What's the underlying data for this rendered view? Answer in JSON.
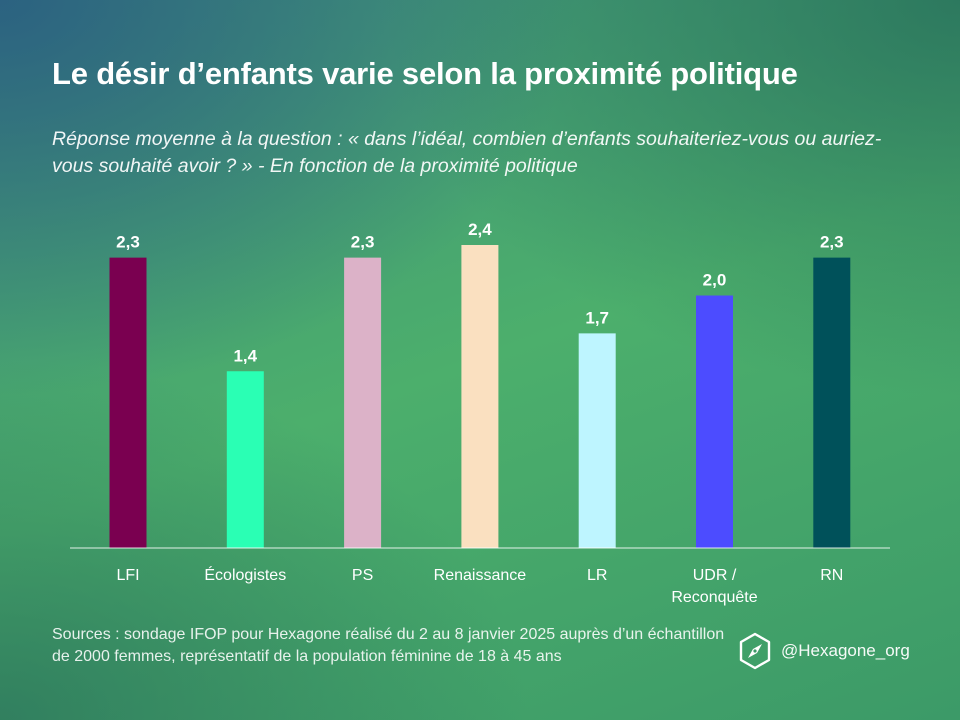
{
  "header": {
    "title": "Le désir d’enfants varie selon la proximité politique",
    "subtitle": "Réponse moyenne à la question : « dans l’idéal, combien d’enfants souhaiteriez-vous ou auriez-vous souhaité avoir ? » - En fonction de la proximité politique"
  },
  "chart_data": {
    "type": "bar",
    "categories": [
      "LFI",
      "Écologistes",
      "PS",
      "Renaissance",
      "LR",
      "UDR / Reconquête",
      "RN"
    ],
    "category_lines": [
      [
        "LFI"
      ],
      [
        "Écologistes"
      ],
      [
        "PS"
      ],
      [
        "Renaissance"
      ],
      [
        "LR"
      ],
      [
        "UDR /",
        "Reconquête"
      ],
      [
        "RN"
      ]
    ],
    "values": [
      2.3,
      1.4,
      2.3,
      2.4,
      1.7,
      2.0,
      2.3
    ],
    "value_labels": [
      "2,3",
      "1,4",
      "2,3",
      "2,4",
      "1,7",
      "2,0",
      "2,3"
    ],
    "colors": [
      "#7a0050",
      "#2affb4",
      "#dcb2c8",
      "#fae0c0",
      "#bef5ff",
      "#4c4cff",
      "#00515a"
    ],
    "ylim": [
      0,
      2.4
    ],
    "grid": false,
    "legend": "none"
  },
  "footer": {
    "sources": "Sources : sondage IFOP pour Hexagone réalisé du 2 au 8 janvier 2025 auprès d’un échantillon de 2000 femmes, représentatif de la population féminine de 18 à 45 ans",
    "handle": "@Hexagone_org",
    "logo_icon": "hexagon-compass-icon"
  }
}
